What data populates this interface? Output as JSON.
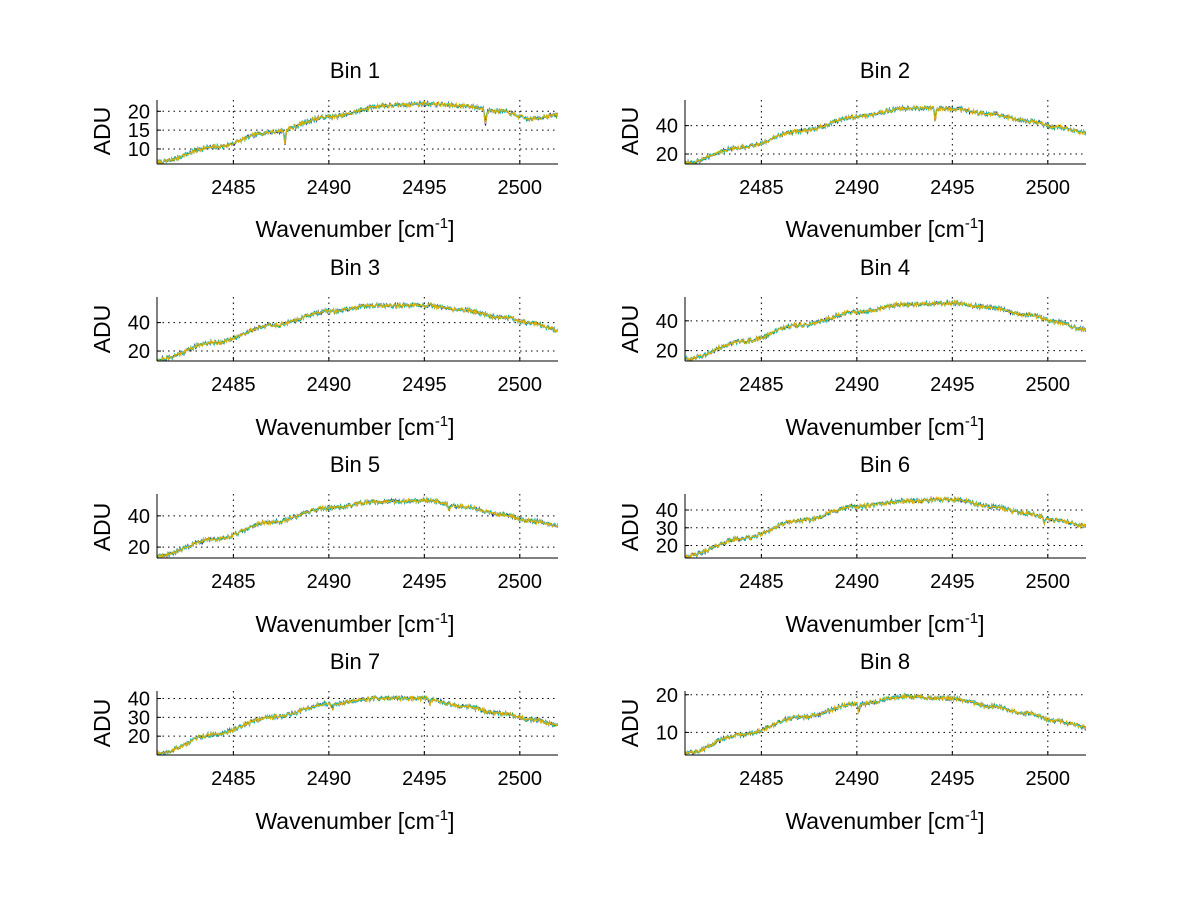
{
  "colors": {
    "background": "#ffffff",
    "axis": "#000000",
    "series": [
      "#00008b",
      "#1f77b4",
      "#2ca02c",
      "#00bfbf",
      "#e5b000"
    ]
  },
  "chart_data": [
    {
      "type": "line",
      "title": "Bin 1",
      "xlabel": "Wavenumber [cm",
      "xlabel_sup": "-1",
      "xlabel_close": "]",
      "ylabel": "ADU",
      "xlim": [
        2481,
        2502
      ],
      "ylim": [
        6,
        23
      ],
      "xticks": [
        2485,
        2490,
        2495,
        2500
      ],
      "yticks": [
        10,
        15,
        20
      ],
      "xtick_labels": [
        "2485",
        "2490",
        "2495",
        "2500"
      ],
      "ytick_labels": [
        "10",
        "15",
        "20"
      ],
      "profile": {
        "x": [
          2481,
          2484,
          2487,
          2490,
          2493,
          2495,
          2497,
          2499,
          2500.5,
          2502
        ],
        "y": [
          6.5,
          10.5,
          14.5,
          18.5,
          21.5,
          22,
          21.5,
          20,
          18,
          19
        ]
      },
      "dips": [
        {
          "x": 2487.7,
          "depth": 3.5
        },
        {
          "x": 2498.2,
          "depth": 4
        }
      ]
    },
    {
      "type": "line",
      "title": "Bin 2",
      "xlabel": "Wavenumber [cm",
      "xlabel_sup": "-1",
      "xlabel_close": "]",
      "ylabel": "ADU",
      "xlim": [
        2481,
        2502
      ],
      "ylim": [
        13,
        58
      ],
      "xticks": [
        2485,
        2490,
        2495,
        2500
      ],
      "yticks": [
        20,
        40
      ],
      "xtick_labels": [
        "2485",
        "2490",
        "2495",
        "2500"
      ],
      "ytick_labels": [
        "20",
        "40"
      ],
      "profile": {
        "x": [
          2481,
          2484,
          2487,
          2490,
          2492.5,
          2495,
          2497,
          2499,
          2500.5,
          2502
        ],
        "y": [
          14,
          25,
          36,
          46,
          52,
          52,
          48,
          43,
          39,
          35
        ]
      },
      "dips": [
        {
          "x": 2494.1,
          "depth": 8
        }
      ]
    },
    {
      "type": "line",
      "title": "Bin 3",
      "xlabel": "Wavenumber [cm",
      "xlabel_sup": "-1",
      "xlabel_close": "]",
      "ylabel": "ADU",
      "xlim": [
        2481,
        2502
      ],
      "ylim": [
        13,
        58
      ],
      "xticks": [
        2485,
        2490,
        2495,
        2500
      ],
      "yticks": [
        20,
        40
      ],
      "xtick_labels": [
        "2485",
        "2490",
        "2495",
        "2500"
      ],
      "ytick_labels": [
        "20",
        "40"
      ],
      "profile": {
        "x": [
          2481,
          2484,
          2487,
          2490,
          2492.5,
          2495,
          2497,
          2499,
          2500.5,
          2502
        ],
        "y": [
          14,
          26,
          38,
          48,
          52,
          52,
          49,
          44,
          40,
          35
        ]
      },
      "dips": []
    },
    {
      "type": "line",
      "title": "Bin 4",
      "xlabel": "Wavenumber [cm",
      "xlabel_sup": "-1",
      "xlabel_close": "]",
      "ylabel": "ADU",
      "xlim": [
        2481,
        2502
      ],
      "ylim": [
        13,
        56
      ],
      "xticks": [
        2485,
        2490,
        2495,
        2500
      ],
      "yticks": [
        20,
        40
      ],
      "xtick_labels": [
        "2485",
        "2490",
        "2495",
        "2500"
      ],
      "ytick_labels": [
        "20",
        "40"
      ],
      "profile": {
        "x": [
          2481,
          2484,
          2487,
          2490,
          2492.5,
          2495,
          2497,
          2499,
          2500.5,
          2502
        ],
        "y": [
          14,
          26,
          37,
          46,
          51,
          52,
          49,
          44,
          39,
          34
        ]
      },
      "dips": []
    },
    {
      "type": "line",
      "title": "Bin 5",
      "xlabel": "Wavenumber [cm",
      "xlabel_sup": "-1",
      "xlabel_close": "]",
      "ylabel": "ADU",
      "xlim": [
        2481,
        2502
      ],
      "ylim": [
        13,
        54
      ],
      "xticks": [
        2485,
        2490,
        2495,
        2500
      ],
      "yticks": [
        20,
        40
      ],
      "xtick_labels": [
        "2485",
        "2490",
        "2495",
        "2500"
      ],
      "ytick_labels": [
        "20",
        "40"
      ],
      "profile": {
        "x": [
          2481,
          2484,
          2487,
          2490,
          2492.5,
          2495,
          2497,
          2499,
          2500.5,
          2502
        ],
        "y": [
          14,
          25,
          36,
          45,
          49,
          50,
          46,
          41,
          37,
          34
        ]
      },
      "dips": [
        {
          "x": 2496.3,
          "depth": 4
        }
      ]
    },
    {
      "type": "line",
      "title": "Bin 6",
      "xlabel": "Wavenumber [cm",
      "xlabel_sup": "-1",
      "xlabel_close": "]",
      "ylabel": "ADU",
      "xlim": [
        2481,
        2502
      ],
      "ylim": [
        13,
        49
      ],
      "xticks": [
        2485,
        2490,
        2495,
        2500
      ],
      "yticks": [
        20,
        30,
        40
      ],
      "xtick_labels": [
        "2485",
        "2490",
        "2495",
        "2500"
      ],
      "ytick_labels": [
        "20",
        "30",
        "40"
      ],
      "profile": {
        "x": [
          2481,
          2484,
          2487,
          2490,
          2492.5,
          2495,
          2497,
          2499,
          2500.5,
          2502
        ],
        "y": [
          14,
          24,
          34,
          42,
          45,
          46,
          42,
          38,
          34,
          31
        ]
      },
      "dips": [
        {
          "x": 2499.8,
          "depth": 4
        }
      ]
    },
    {
      "type": "line",
      "title": "Bin 7",
      "xlabel": "Wavenumber [cm",
      "xlabel_sup": "-1",
      "xlabel_close": "]",
      "ylabel": "ADU",
      "xlim": [
        2481,
        2502
      ],
      "ylim": [
        10,
        44
      ],
      "xticks": [
        2485,
        2490,
        2495,
        2500
      ],
      "yticks": [
        20,
        30,
        40
      ],
      "xtick_labels": [
        "2485",
        "2490",
        "2495",
        "2500"
      ],
      "ytick_labels": [
        "20",
        "30",
        "40"
      ],
      "profile": {
        "x": [
          2481,
          2484,
          2487,
          2490,
          2492.5,
          2495,
          2497,
          2499,
          2500.5,
          2502
        ],
        "y": [
          11,
          21,
          30,
          37,
          40,
          40,
          36,
          32,
          29,
          26
        ]
      },
      "dips": [
        {
          "x": 2490.2,
          "depth": 3
        },
        {
          "x": 2495.3,
          "depth": 3
        }
      ]
    },
    {
      "type": "line",
      "title": "Bin 8",
      "xlabel": "Wavenumber [cm",
      "xlabel_sup": "-1",
      "xlabel_close": "]",
      "ylabel": "ADU",
      "xlim": [
        2481,
        2502
      ],
      "ylim": [
        4,
        21
      ],
      "xticks": [
        2485,
        2490,
        2495,
        2500
      ],
      "yticks": [
        10,
        20
      ],
      "xtick_labels": [
        "2485",
        "2490",
        "2495",
        "2500"
      ],
      "ytick_labels": [
        "10",
        "20"
      ],
      "profile": {
        "x": [
          2481,
          2484,
          2487,
          2490,
          2492.5,
          2495,
          2497,
          2499,
          2500.5,
          2502
        ],
        "y": [
          4.5,
          9.5,
          14,
          17.5,
          19.5,
          19,
          17,
          15,
          13,
          11.5
        ]
      },
      "dips": [
        {
          "x": 2490.1,
          "depth": 2
        }
      ]
    }
  ]
}
